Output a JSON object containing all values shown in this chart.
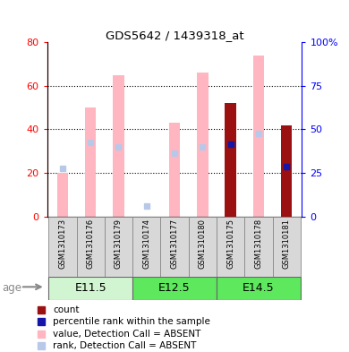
{
  "title": "GDS5642 / 1439318_at",
  "samples": [
    "GSM1310173",
    "GSM1310176",
    "GSM1310179",
    "GSM1310174",
    "GSM1310177",
    "GSM1310180",
    "GSM1310175",
    "GSM1310178",
    "GSM1310181"
  ],
  "value_absent": [
    20,
    50,
    65,
    0,
    43,
    66,
    0,
    74,
    0
  ],
  "rank_absent": [
    22,
    34,
    32,
    5,
    29,
    32,
    0,
    38,
    0
  ],
  "count_values": [
    0,
    0,
    0,
    0,
    0,
    0,
    52,
    0,
    42
  ],
  "count_rank": [
    0,
    0,
    0,
    0,
    0,
    0,
    33,
    0,
    23
  ],
  "ylim_left": [
    0,
    80
  ],
  "ylim_right": [
    0,
    100
  ],
  "left_ticks": [
    0,
    20,
    40,
    60,
    80
  ],
  "right_ticks": [
    0,
    25,
    50,
    75,
    100
  ],
  "right_tick_labels": [
    "0",
    "25",
    "50",
    "75",
    "100%"
  ],
  "color_value_absent": "#FFB6C1",
  "color_rank_absent": "#B8C8E8",
  "color_count": "#9B1010",
  "color_rank": "#1515AA",
  "bar_width": 0.4,
  "age_label": "age",
  "group_defs": [
    {
      "label": "E11.5",
      "start": 0,
      "end": 2,
      "color": "#d0f5d0"
    },
    {
      "label": "E12.5",
      "start": 3,
      "end": 5,
      "color": "#5de85d"
    },
    {
      "label": "E14.5",
      "start": 6,
      "end": 8,
      "color": "#5de85d"
    }
  ],
  "legend_items": [
    {
      "color": "#9B1010",
      "marker": "s",
      "label": "count"
    },
    {
      "color": "#1515AA",
      "marker": "s",
      "label": "percentile rank within the sample"
    },
    {
      "color": "#FFB6C1",
      "marker": "s",
      "label": "value, Detection Call = ABSENT"
    },
    {
      "color": "#B8C8E8",
      "marker": "s",
      "label": "rank, Detection Call = ABSENT"
    }
  ]
}
